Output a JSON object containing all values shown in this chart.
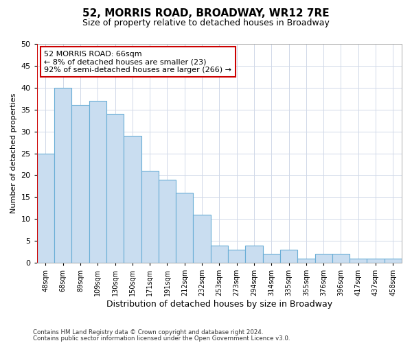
{
  "title": "52, MORRIS ROAD, BROADWAY, WR12 7RE",
  "subtitle": "Size of property relative to detached houses in Broadway",
  "xlabel": "Distribution of detached houses by size in Broadway",
  "ylabel": "Number of detached properties",
  "x_labels": [
    "48sqm",
    "68sqm",
    "89sqm",
    "109sqm",
    "130sqm",
    "150sqm",
    "171sqm",
    "191sqm",
    "212sqm",
    "232sqm",
    "253sqm",
    "273sqm",
    "294sqm",
    "314sqm",
    "335sqm",
    "355sqm",
    "376sqm",
    "396sqm",
    "417sqm",
    "437sqm",
    "458sqm"
  ],
  "bar_values": [
    25,
    40,
    36,
    37,
    34,
    29,
    21,
    19,
    16,
    11,
    4,
    3,
    4,
    2,
    3,
    1,
    2,
    2,
    1,
    1,
    1
  ],
  "bar_color": "#c9ddf0",
  "bar_edge_color": "#6aaed6",
  "vline_color": "#cc0000",
  "annotation_text": "52 MORRIS ROAD: 66sqm\n← 8% of detached houses are smaller (23)\n92% of semi-detached houses are larger (266) →",
  "annotation_box_facecolor": "#ffffff",
  "annotation_box_edgecolor": "#cc0000",
  "ylim_max": 50,
  "yticks": [
    0,
    5,
    10,
    15,
    20,
    25,
    30,
    35,
    40,
    45,
    50
  ],
  "footnote1": "Contains HM Land Registry data © Crown copyright and database right 2024.",
  "footnote2": "Contains public sector information licensed under the Open Government Licence v3.0.",
  "bg_color": "#ffffff",
  "grid_color": "#d0d8e8",
  "title_fontsize": 11,
  "subtitle_fontsize": 9,
  "vline_pos": -0.5
}
